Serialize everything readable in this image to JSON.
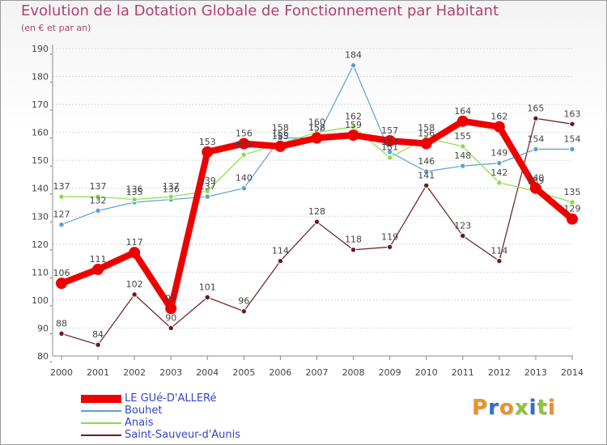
{
  "header": {
    "title": "Evolution de la Dotation Globale de Fonctionnement par Habitant",
    "subtitle": "(en € et par an)"
  },
  "chart_data": {
    "type": "line",
    "title": "Evolution de la Dotation Globale de Fonctionnement par Habitant",
    "subtitle": "(en € et par an)",
    "xlabel": "",
    "ylabel": "",
    "x": [
      "2000",
      "2001",
      "2002",
      "2003",
      "2004",
      "2005",
      "2006",
      "2007",
      "2008",
      "2009",
      "2010",
      "2011",
      "2012",
      "2013",
      "2014"
    ],
    "ylim": [
      80,
      190
    ],
    "yticks": [
      80,
      90,
      100,
      110,
      120,
      130,
      140,
      150,
      160,
      170,
      180,
      190
    ],
    "grid": "horizontal dotted",
    "legend": "bottom-left",
    "series": [
      {
        "name": "LE GUé-D'ALLERé",
        "color": "#ee0000",
        "values": [
          106,
          111,
          117,
          97,
          153,
          156,
          155,
          158,
          159,
          157,
          156,
          164,
          162,
          140,
          129
        ]
      },
      {
        "name": "Bouhet",
        "color": "#5a9fd4",
        "values": [
          127,
          132,
          135,
          136,
          137,
          140,
          158,
          158,
          184,
          153,
          146,
          148,
          149,
          154,
          154
        ]
      },
      {
        "name": "Anais",
        "color": "#88dd44",
        "values": [
          137,
          137,
          136,
          137,
          139,
          152,
          156,
          160,
          162,
          151,
          158,
          155,
          142,
          139,
          135
        ]
      },
      {
        "name": "Saint-Sauveur-d'Aunis",
        "color": "#6b1a1a",
        "values": [
          88,
          84,
          102,
          90,
          101,
          96,
          114,
          128,
          118,
          119,
          141,
          123,
          114,
          165,
          163
        ]
      }
    ],
    "data_labels": [
      {
        "series": "LE GUé-D'ALLERé",
        "labels": [
          "106",
          "111",
          "117",
          "97",
          "153",
          "156",
          "155",
          "158",
          "159",
          "157",
          "156",
          "164",
          "162",
          "140",
          "129"
        ]
      },
      {
        "series": "Bouhet",
        "labels": [
          "127",
          "132",
          "135",
          "136",
          "137",
          "140",
          "158",
          "158",
          "184",
          "153",
          "146",
          "148",
          "149",
          "154",
          "154"
        ]
      },
      {
        "series": "Anais",
        "labels": [
          "137",
          "137",
          "136",
          "137",
          "139",
          "152",
          "156",
          "160",
          "162",
          "151",
          "158",
          "155",
          "142",
          "139",
          "135"
        ]
      },
      {
        "series": "Saint-Sauveur-d'Aunis",
        "labels": [
          "88",
          "84",
          "102",
          "90",
          "101",
          "96",
          "114",
          "128",
          "118",
          "119",
          "141",
          "123",
          "114",
          "165",
          "163"
        ]
      }
    ]
  },
  "logo": {
    "text": "Proxiti",
    "colors": [
      "#e8932a",
      "#2a6fd0",
      "#e8932a",
      "#8fc43a",
      "#2a6fd0",
      "#8fc43a",
      "#e8932a"
    ]
  }
}
